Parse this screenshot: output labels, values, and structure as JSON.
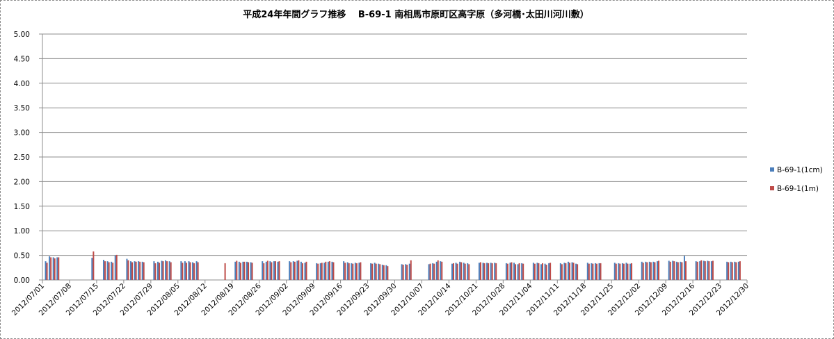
{
  "chart_data": {
    "type": "bar",
    "title": "平成24年年間グラフ推移　 B-69-1 南相馬市原町区高字原（多河橋･太田川河川敷）",
    "xlabel": "",
    "ylabel": "",
    "ylim": [
      0,
      5
    ],
    "yticks": [
      "0.00",
      "0.50",
      "1.00",
      "1.50",
      "2.00",
      "2.50",
      "3.00",
      "3.50",
      "4.00",
      "4.50",
      "5.00"
    ],
    "grid": true,
    "legend_position": "right",
    "x_start": "2012/07/01",
    "x_end": "2012/12/30",
    "xticks": [
      "2012/07/01",
      "2012/07/08",
      "2012/07/15",
      "2012/07/22",
      "2012/07/29",
      "2012/08/05",
      "2012/08/12",
      "2012/08/19",
      "2012/08/26",
      "2012/09/02",
      "2012/09/09",
      "2012/09/16",
      "2012/09/23",
      "2012/09/30",
      "2012/10/07",
      "2012/10/14",
      "2012/10/21",
      "2012/10/28",
      "2012/11/04",
      "2012/11/11",
      "2012/11/18",
      "2012/11/25",
      "2012/12/02",
      "2012/12/09",
      "2012/12/16",
      "2012/12/23",
      "2012/12/30"
    ],
    "series": [
      {
        "name": "B-69-1(1cm)",
        "color": "#4a7ebb",
        "points": [
          [
            "2012/07/02",
            0.38
          ],
          [
            "2012/07/03",
            0.48
          ],
          [
            "2012/07/04",
            0.46
          ],
          [
            "2012/07/05",
            0.46
          ],
          [
            "2012/07/14",
            0.45
          ],
          [
            "2012/07/17",
            0.41
          ],
          [
            "2012/07/18",
            0.38
          ],
          [
            "2012/07/19",
            0.37
          ],
          [
            "2012/07/20",
            0.5
          ],
          [
            "2012/07/23",
            0.43
          ],
          [
            "2012/07/24",
            0.38
          ],
          [
            "2012/07/25",
            0.38
          ],
          [
            "2012/07/26",
            0.38
          ],
          [
            "2012/07/27",
            0.37
          ],
          [
            "2012/07/30",
            0.38
          ],
          [
            "2012/07/31",
            0.37
          ],
          [
            "2012/08/01",
            0.39
          ],
          [
            "2012/08/02",
            0.4
          ],
          [
            "2012/08/03",
            0.38
          ],
          [
            "2012/08/06",
            0.38
          ],
          [
            "2012/08/07",
            0.38
          ],
          [
            "2012/08/08",
            0.38
          ],
          [
            "2012/08/09",
            0.36
          ],
          [
            "2012/08/10",
            0.38
          ],
          [
            "2012/08/20",
            0.37
          ],
          [
            "2012/08/21",
            0.37
          ],
          [
            "2012/08/22",
            0.37
          ],
          [
            "2012/08/23",
            0.37
          ],
          [
            "2012/08/24",
            0.36
          ],
          [
            "2012/08/27",
            0.38
          ],
          [
            "2012/08/28",
            0.37
          ],
          [
            "2012/08/29",
            0.38
          ],
          [
            "2012/08/30",
            0.38
          ],
          [
            "2012/08/31",
            0.37
          ],
          [
            "2012/09/03",
            0.38
          ],
          [
            "2012/09/04",
            0.38
          ],
          [
            "2012/09/05",
            0.39
          ],
          [
            "2012/09/06",
            0.37
          ],
          [
            "2012/09/07",
            0.35
          ],
          [
            "2012/09/10",
            0.34
          ],
          [
            "2012/09/11",
            0.34
          ],
          [
            "2012/09/12",
            0.35
          ],
          [
            "2012/09/13",
            0.37
          ],
          [
            "2012/09/14",
            0.37
          ],
          [
            "2012/09/17",
            0.38
          ],
          [
            "2012/09/18",
            0.36
          ],
          [
            "2012/09/19",
            0.34
          ],
          [
            "2012/09/20",
            0.35
          ],
          [
            "2012/09/21",
            0.35
          ],
          [
            "2012/09/24",
            0.34
          ],
          [
            "2012/09/25",
            0.35
          ],
          [
            "2012/09/26",
            0.33
          ],
          [
            "2012/09/27",
            0.31
          ],
          [
            "2012/09/28",
            0.3
          ],
          [
            "2012/10/02",
            0.32
          ],
          [
            "2012/10/03",
            0.32
          ],
          [
            "2012/10/04",
            0.33
          ],
          [
            "2012/10/09",
            0.32
          ],
          [
            "2012/10/10",
            0.34
          ],
          [
            "2012/10/11",
            0.37
          ],
          [
            "2012/10/12",
            0.38
          ],
          [
            "2012/10/15",
            0.33
          ],
          [
            "2012/10/16",
            0.35
          ],
          [
            "2012/10/17",
            0.37
          ],
          [
            "2012/10/18",
            0.35
          ],
          [
            "2012/10/19",
            0.34
          ],
          [
            "2012/10/22",
            0.35
          ],
          [
            "2012/10/23",
            0.35
          ],
          [
            "2012/10/24",
            0.35
          ],
          [
            "2012/10/25",
            0.35
          ],
          [
            "2012/10/26",
            0.35
          ],
          [
            "2012/10/29",
            0.34
          ],
          [
            "2012/10/30",
            0.35
          ],
          [
            "2012/10/31",
            0.35
          ],
          [
            "2012/11/01",
            0.32
          ],
          [
            "2012/11/02",
            0.34
          ],
          [
            "2012/11/05",
            0.35
          ],
          [
            "2012/11/06",
            0.35
          ],
          [
            "2012/11/07",
            0.32
          ],
          [
            "2012/11/08",
            0.33
          ],
          [
            "2012/11/09",
            0.34
          ],
          [
            "2012/11/12",
            0.34
          ],
          [
            "2012/11/13",
            0.35
          ],
          [
            "2012/11/14",
            0.37
          ],
          [
            "2012/11/15",
            0.36
          ],
          [
            "2012/11/16",
            0.33
          ],
          [
            "2012/11/19",
            0.35
          ],
          [
            "2012/11/20",
            0.34
          ],
          [
            "2012/11/21",
            0.34
          ],
          [
            "2012/11/22",
            0.34
          ],
          [
            "2012/11/26",
            0.35
          ],
          [
            "2012/11/27",
            0.34
          ],
          [
            "2012/11/28",
            0.34
          ],
          [
            "2012/11/29",
            0.35
          ],
          [
            "2012/11/30",
            0.33
          ],
          [
            "2012/12/03",
            0.37
          ],
          [
            "2012/12/04",
            0.37
          ],
          [
            "2012/12/05",
            0.37
          ],
          [
            "2012/12/06",
            0.37
          ],
          [
            "2012/12/07",
            0.38
          ],
          [
            "2012/12/10",
            0.39
          ],
          [
            "2012/12/11",
            0.39
          ],
          [
            "2012/12/12",
            0.37
          ],
          [
            "2012/12/13",
            0.37
          ],
          [
            "2012/12/14",
            0.49
          ],
          [
            "2012/12/17",
            0.38
          ],
          [
            "2012/12/18",
            0.38
          ],
          [
            "2012/12/19",
            0.39
          ],
          [
            "2012/12/20",
            0.39
          ],
          [
            "2012/12/21",
            0.38
          ],
          [
            "2012/12/25",
            0.37
          ],
          [
            "2012/12/26",
            0.37
          ],
          [
            "2012/12/27",
            0.37
          ],
          [
            "2012/12/28",
            0.37
          ]
        ]
      },
      {
        "name": "B-69-1(1m)",
        "color": "#be4b48",
        "points": [
          [
            "2012/07/02",
            0.35
          ],
          [
            "2012/07/03",
            0.46
          ],
          [
            "2012/07/04",
            0.44
          ],
          [
            "2012/07/05",
            0.46
          ],
          [
            "2012/07/14",
            0.58
          ],
          [
            "2012/07/17",
            0.38
          ],
          [
            "2012/07/18",
            0.36
          ],
          [
            "2012/07/19",
            0.35
          ],
          [
            "2012/07/20",
            0.51
          ],
          [
            "2012/07/23",
            0.4
          ],
          [
            "2012/07/24",
            0.36
          ],
          [
            "2012/07/25",
            0.37
          ],
          [
            "2012/07/26",
            0.37
          ],
          [
            "2012/07/27",
            0.36
          ],
          [
            "2012/07/30",
            0.34
          ],
          [
            "2012/07/31",
            0.35
          ],
          [
            "2012/08/01",
            0.38
          ],
          [
            "2012/08/02",
            0.38
          ],
          [
            "2012/08/03",
            0.36
          ],
          [
            "2012/08/06",
            0.35
          ],
          [
            "2012/08/07",
            0.35
          ],
          [
            "2012/08/08",
            0.36
          ],
          [
            "2012/08/09",
            0.34
          ],
          [
            "2012/08/10",
            0.36
          ],
          [
            "2012/08/17",
            0.34
          ],
          [
            "2012/08/20",
            0.39
          ],
          [
            "2012/08/21",
            0.35
          ],
          [
            "2012/08/22",
            0.37
          ],
          [
            "2012/08/23",
            0.36
          ],
          [
            "2012/08/24",
            0.35
          ],
          [
            "2012/08/27",
            0.34
          ],
          [
            "2012/08/28",
            0.39
          ],
          [
            "2012/08/29",
            0.36
          ],
          [
            "2012/08/30",
            0.38
          ],
          [
            "2012/08/31",
            0.38
          ],
          [
            "2012/09/03",
            0.36
          ],
          [
            "2012/09/04",
            0.37
          ],
          [
            "2012/09/05",
            0.4
          ],
          [
            "2012/09/06",
            0.34
          ],
          [
            "2012/09/07",
            0.37
          ],
          [
            "2012/09/10",
            0.33
          ],
          [
            "2012/09/11",
            0.35
          ],
          [
            "2012/09/12",
            0.37
          ],
          [
            "2012/09/13",
            0.38
          ],
          [
            "2012/09/14",
            0.36
          ],
          [
            "2012/09/17",
            0.35
          ],
          [
            "2012/09/18",
            0.34
          ],
          [
            "2012/09/19",
            0.33
          ],
          [
            "2012/09/20",
            0.34
          ],
          [
            "2012/09/21",
            0.36
          ],
          [
            "2012/09/24",
            0.33
          ],
          [
            "2012/09/25",
            0.33
          ],
          [
            "2012/09/26",
            0.32
          ],
          [
            "2012/09/27",
            0.3
          ],
          [
            "2012/09/28",
            0.28
          ],
          [
            "2012/10/02",
            0.31
          ],
          [
            "2012/10/03",
            0.31
          ],
          [
            "2012/10/04",
            0.4
          ],
          [
            "2012/10/09",
            0.33
          ],
          [
            "2012/10/10",
            0.33
          ],
          [
            "2012/10/11",
            0.4
          ],
          [
            "2012/10/12",
            0.37
          ],
          [
            "2012/10/15",
            0.34
          ],
          [
            "2012/10/16",
            0.33
          ],
          [
            "2012/10/17",
            0.36
          ],
          [
            "2012/10/18",
            0.33
          ],
          [
            "2012/10/19",
            0.32
          ],
          [
            "2012/10/22",
            0.36
          ],
          [
            "2012/10/23",
            0.34
          ],
          [
            "2012/10/24",
            0.34
          ],
          [
            "2012/10/25",
            0.34
          ],
          [
            "2012/10/26",
            0.34
          ],
          [
            "2012/10/29",
            0.33
          ],
          [
            "2012/10/30",
            0.36
          ],
          [
            "2012/10/31",
            0.32
          ],
          [
            "2012/11/01",
            0.34
          ],
          [
            "2012/11/02",
            0.33
          ],
          [
            "2012/11/05",
            0.33
          ],
          [
            "2012/11/06",
            0.34
          ],
          [
            "2012/11/07",
            0.34
          ],
          [
            "2012/11/08",
            0.31
          ],
          [
            "2012/11/09",
            0.35
          ],
          [
            "2012/11/12",
            0.32
          ],
          [
            "2012/11/13",
            0.34
          ],
          [
            "2012/11/14",
            0.35
          ],
          [
            "2012/11/15",
            0.35
          ],
          [
            "2012/11/16",
            0.32
          ],
          [
            "2012/11/19",
            0.33
          ],
          [
            "2012/11/20",
            0.33
          ],
          [
            "2012/11/21",
            0.33
          ],
          [
            "2012/11/22",
            0.34
          ],
          [
            "2012/11/26",
            0.33
          ],
          [
            "2012/11/27",
            0.33
          ],
          [
            "2012/11/28",
            0.33
          ],
          [
            "2012/11/29",
            0.33
          ],
          [
            "2012/11/30",
            0.34
          ],
          [
            "2012/12/03",
            0.35
          ],
          [
            "2012/12/04",
            0.36
          ],
          [
            "2012/12/05",
            0.36
          ],
          [
            "2012/12/06",
            0.36
          ],
          [
            "2012/12/07",
            0.39
          ],
          [
            "2012/12/10",
            0.37
          ],
          [
            "2012/12/11",
            0.38
          ],
          [
            "2012/12/12",
            0.36
          ],
          [
            "2012/12/13",
            0.36
          ],
          [
            "2012/12/14",
            0.38
          ],
          [
            "2012/12/17",
            0.37
          ],
          [
            "2012/12/18",
            0.4
          ],
          [
            "2012/12/19",
            0.38
          ],
          [
            "2012/12/20",
            0.38
          ],
          [
            "2012/12/21",
            0.39
          ],
          [
            "2012/12/25",
            0.36
          ],
          [
            "2012/12/26",
            0.36
          ],
          [
            "2012/12/27",
            0.36
          ],
          [
            "2012/12/28",
            0.38
          ]
        ]
      }
    ]
  }
}
